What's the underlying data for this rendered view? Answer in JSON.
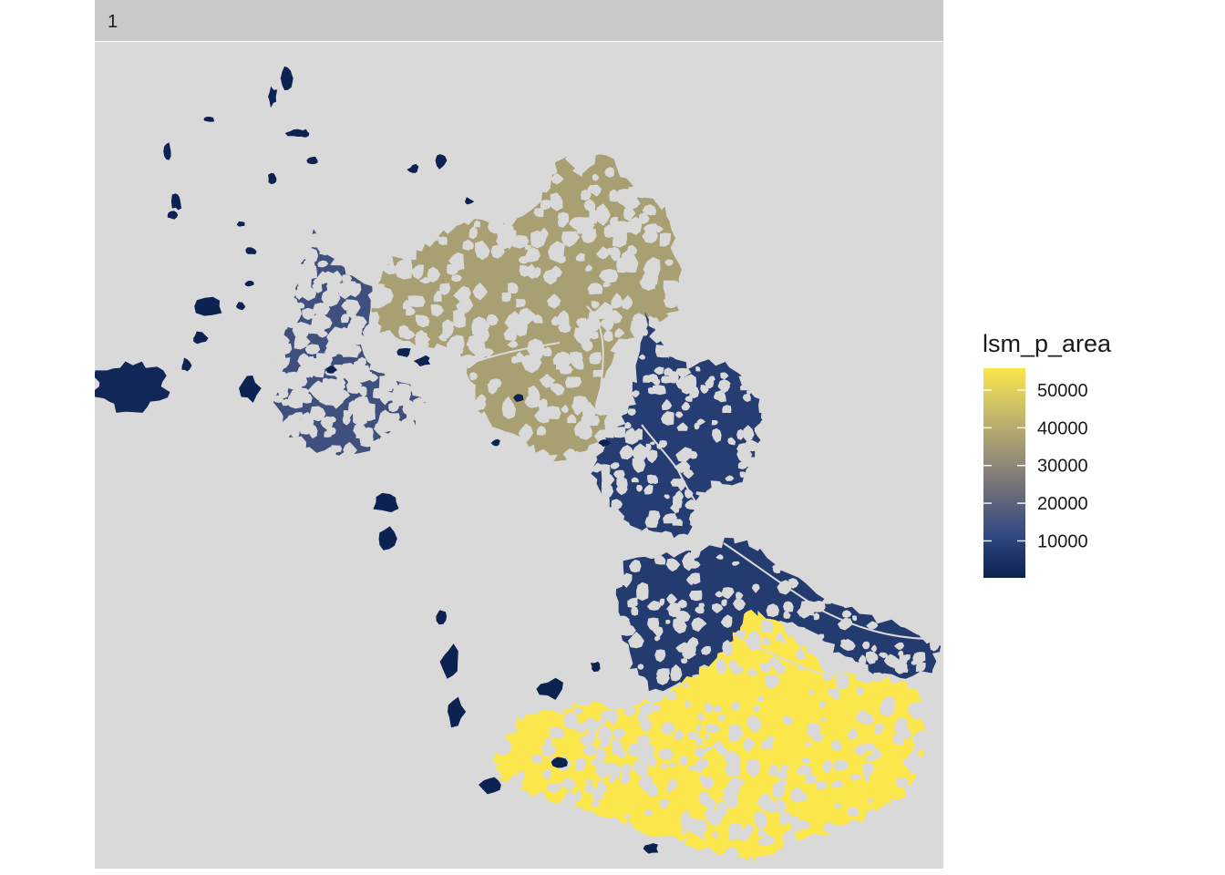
{
  "facet": {
    "label": "1"
  },
  "legend": {
    "title": "lsm_p_area",
    "ticks": [
      10000,
      20000,
      30000,
      40000,
      50000
    ],
    "tick_labels": [
      "10000",
      "20000",
      "30000",
      "40000",
      "50000"
    ],
    "min": 200,
    "max": 55800,
    "colors": [
      "#0b2250",
      "#304780",
      "#696b7a",
      "#9d9477",
      "#c8bd68",
      "#fbe64b"
    ]
  },
  "map": {
    "panel_background": "#d9d9d9",
    "patches": [
      {
        "name": "south-east-patch",
        "value": 55800
      },
      {
        "name": "north-central-patch",
        "value": 36500
      },
      {
        "name": "west-central-patch",
        "value": 14200
      },
      {
        "name": "east-river-patch",
        "value": 8200
      },
      {
        "name": "south-central-patch",
        "value": 7600
      },
      {
        "name": "far-west-patch",
        "value": 1800
      },
      {
        "name": "small-scattered-patches",
        "value": 400
      }
    ]
  }
}
